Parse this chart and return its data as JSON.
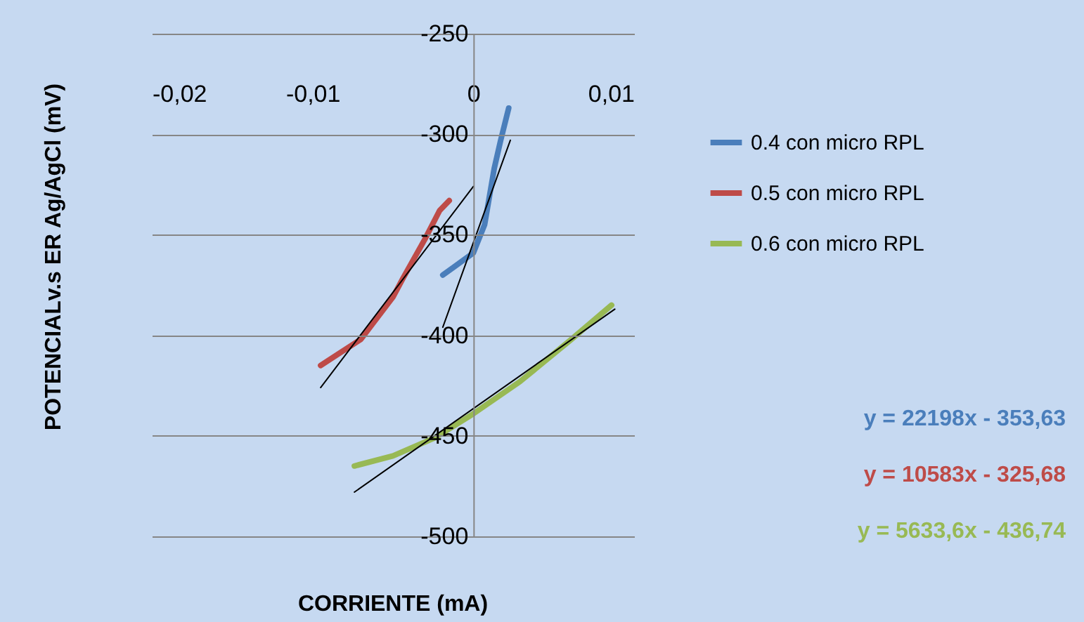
{
  "chart_data": {
    "type": "line",
    "xlabel": "CORRIENTE (mA)",
    "ylabel": "POTENCIALv.s ER Ag/AgCl (mV)",
    "xlim": [
      -0.02,
      0.01
    ],
    "xticks": [
      {
        "value": -0.02,
        "label": "-0,02"
      },
      {
        "value": -0.01,
        "label": "-0,01"
      },
      0,
      {
        "value": 0.01,
        "label": "0,01"
      }
    ],
    "ylim": [
      -500,
      -250
    ],
    "yticks": [
      -500,
      -450,
      -400,
      -350,
      -300,
      -250
    ],
    "grid": "y",
    "legend": "right",
    "line_style": "solid",
    "marker": "none",
    "series": [
      {
        "name": "0.4 con micro RPL",
        "color": "#4a7ebb",
        "x": [
          -0.0019,
          -0.0012,
          0,
          0.0007,
          0.0013,
          0.0017,
          0.0022
        ],
        "values": [
          -370,
          -366,
          -359,
          -345,
          -317,
          -303,
          -287
        ]
      },
      {
        "name": "0.5 con micro RPL",
        "color": "#be4b48",
        "x": [
          -0.0095,
          -0.007,
          -0.005,
          -0.0044,
          -0.003,
          -0.0021,
          -0.0015
        ],
        "values": [
          -415,
          -402,
          -381,
          -372,
          -352,
          -338,
          -333
        ]
      },
      {
        "name": "0.6 con micro RPL",
        "color": "#98b954",
        "x": [
          -0.0074,
          -0.005,
          -0.0024,
          0,
          0.0029,
          0.0061,
          0.0086
        ],
        "values": [
          -465,
          -460,
          -451,
          -439,
          -423,
          -402,
          -385
        ]
      },
      {
        "color": "#000000",
        "x": [
          -0.0019,
          0.0023
        ],
        "values": [
          -396,
          -303
        ]
      },
      {
        "color": "#000000",
        "x": [
          -0.0095,
          0
        ],
        "values": [
          -426,
          -326
        ]
      },
      {
        "color": "#000000",
        "x": [
          -0.0074,
          0.0088
        ],
        "values": [
          -478,
          -387
        ]
      }
    ],
    "annotations": [
      "y = 22198x - 353,63",
      "y = 10583x - 325,68",
      "y = 5633,6x - 436,74"
    ]
  }
}
